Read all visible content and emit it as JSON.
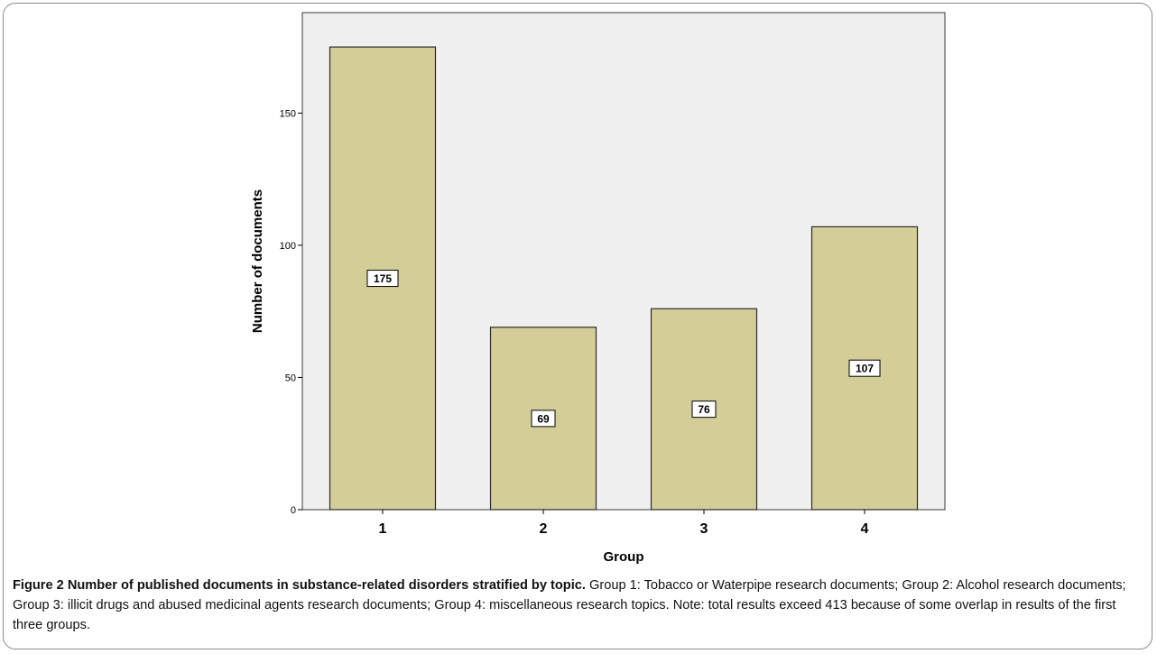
{
  "chart_data": {
    "type": "bar",
    "categories": [
      "1",
      "2",
      "3",
      "4"
    ],
    "values": [
      175,
      69,
      76,
      107
    ],
    "data_labels": [
      "175",
      "69",
      "76",
      "107"
    ],
    "xlabel": "Group",
    "ylabel": "Number of documents",
    "ylim": [
      0,
      188
    ],
    "yticks": [
      0,
      50,
      100,
      150
    ],
    "ytick_labels": [
      "0",
      "50",
      "100",
      "150"
    ],
    "grid": false,
    "legend": "none",
    "colors": {
      "bar_fill": "#d3cd98",
      "bar_stroke": "#2b2b2b",
      "plot_background": "#f0f0f0"
    }
  },
  "caption": {
    "label": "Figure 2 Number of published documents in substance-related disorders stratified by topic.",
    "text": "Group 1: Tobacco or Waterpipe research documents; Group 2: Alcohol research documents; Group 3: illicit drugs and abused medicinal agents research documents; Group 4: miscellaneous research topics. Note: total results exceed 413 because of some overlap in results of the first three groups."
  }
}
